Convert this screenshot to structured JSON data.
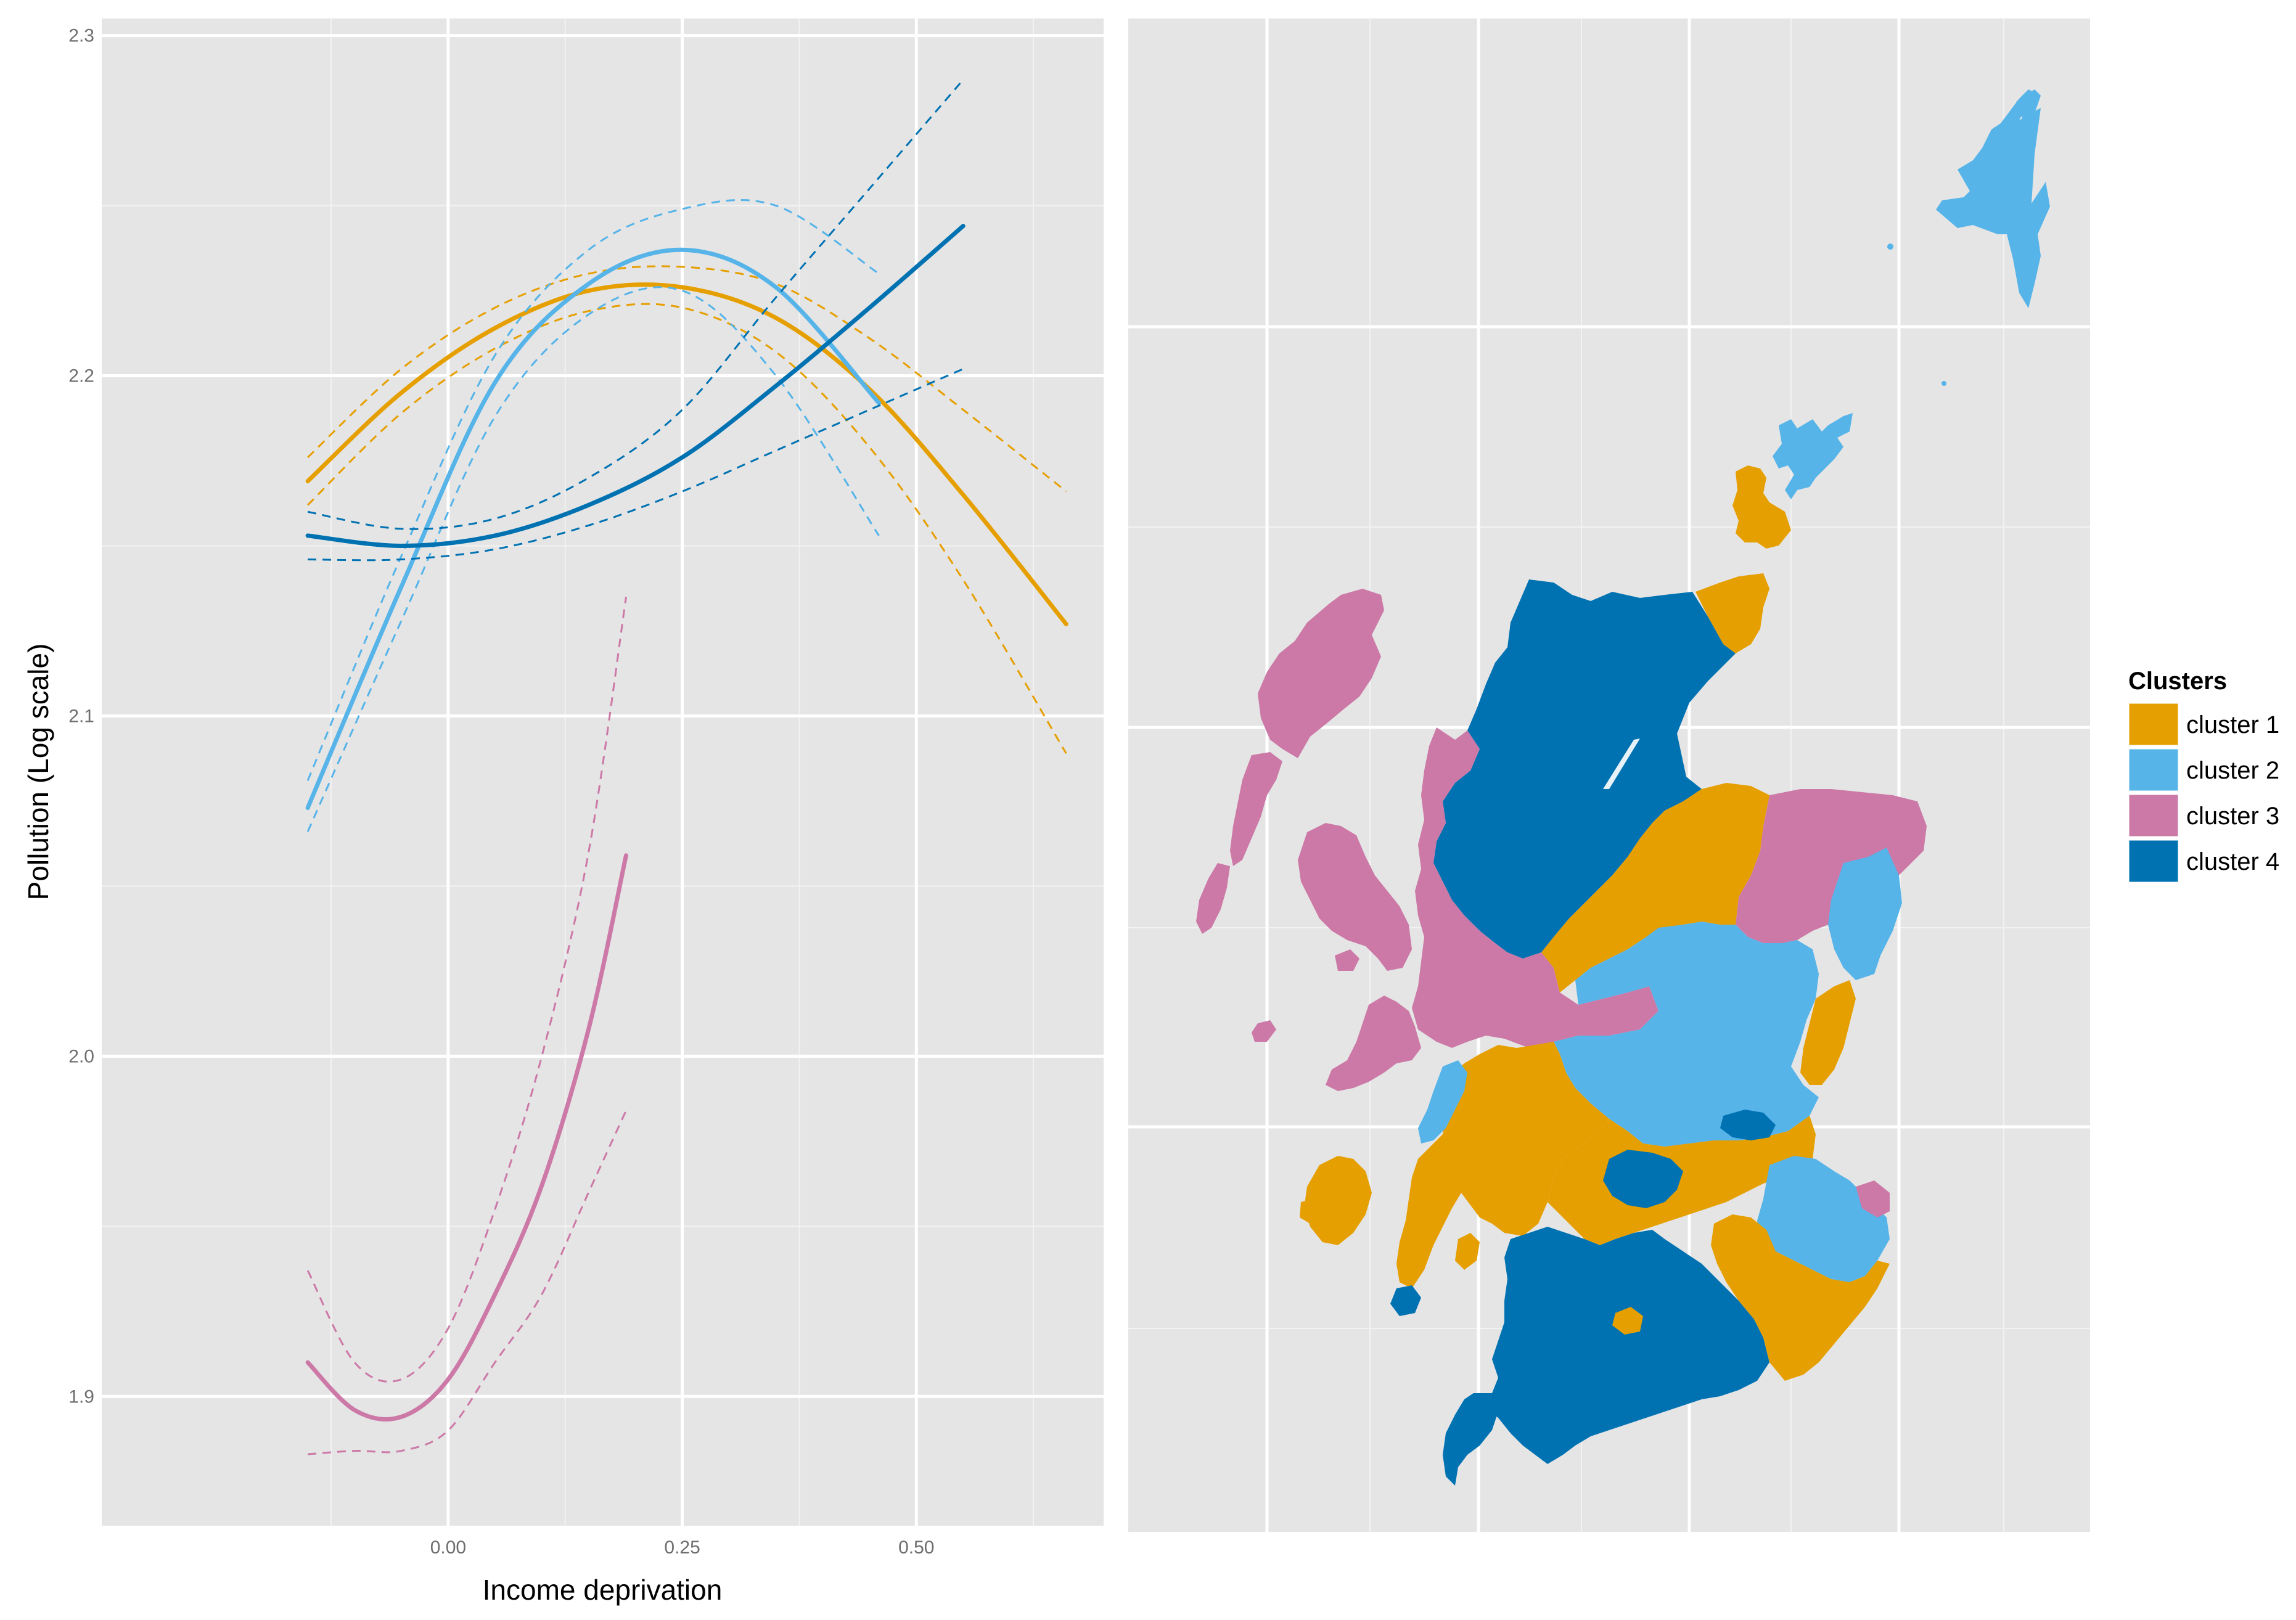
{
  "chart_data": [
    {
      "type": "line",
      "xlabel": "Income deprivation",
      "ylabel": "Pollution (Log scale)",
      "xlim": [
        -0.37,
        0.7
      ],
      "ylim": [
        1.862,
        2.305
      ],
      "x_ticks": [
        {
          "value": 0.0,
          "label": "0.00"
        },
        {
          "value": 0.25,
          "label": "0.25"
        },
        {
          "value": 0.5,
          "label": "0.50"
        }
      ],
      "y_ticks": [
        {
          "value": 1.9,
          "label": "1.9"
        },
        {
          "value": 2.0,
          "label": "2.0"
        },
        {
          "value": 2.1,
          "label": "2.1"
        },
        {
          "value": 2.2,
          "label": "2.2"
        },
        {
          "value": 2.3,
          "label": "2.3"
        }
      ],
      "grid": true,
      "series": [
        {
          "name": "cluster 1",
          "color": "#E69F00",
          "x": [
            -0.15,
            -0.05,
            0.05,
            0.15,
            0.25,
            0.35,
            0.45,
            0.55,
            0.66
          ],
          "fit": [
            2.169,
            2.195,
            2.214,
            2.225,
            2.226,
            2.217,
            2.196,
            2.165,
            2.127
          ],
          "lower": [
            2.162,
            2.189,
            2.208,
            2.219,
            2.22,
            2.207,
            2.179,
            2.14,
            2.089
          ],
          "upper": [
            2.176,
            2.202,
            2.22,
            2.23,
            2.232,
            2.227,
            2.211,
            2.19,
            2.166
          ]
        },
        {
          "name": "cluster 2",
          "color": "#56B4E9",
          "x": [
            -0.15,
            -0.05,
            0.05,
            0.15,
            0.25,
            0.35,
            0.46
          ],
          "fit": [
            2.073,
            2.138,
            2.198,
            2.227,
            2.237,
            2.226,
            2.192
          ],
          "lower": [
            2.066,
            2.128,
            2.188,
            2.218,
            2.225,
            2.2,
            2.153
          ],
          "upper": [
            2.081,
            2.147,
            2.206,
            2.237,
            2.249,
            2.25,
            2.23
          ]
        },
        {
          "name": "cluster 3",
          "color": "#CC79A7",
          "x": [
            -0.15,
            -0.1,
            -0.05,
            0.0,
            0.05,
            0.1,
            0.15,
            0.19
          ],
          "fit": [
            1.91,
            1.896,
            1.894,
            1.905,
            1.93,
            1.962,
            2.008,
            2.059
          ],
          "lower": [
            1.883,
            1.884,
            1.884,
            1.89,
            1.91,
            1.93,
            1.96,
            1.984
          ],
          "upper": [
            1.937,
            1.91,
            1.905,
            1.92,
            1.955,
            2.0,
            2.06,
            2.135
          ]
        },
        {
          "name": "cluster 4",
          "color": "#0072B2",
          "x": [
            -0.15,
            -0.05,
            0.05,
            0.15,
            0.25,
            0.35,
            0.45,
            0.55
          ],
          "fit": [
            2.153,
            2.15,
            2.153,
            2.162,
            2.176,
            2.197,
            2.22,
            2.244
          ],
          "lower": [
            2.146,
            2.146,
            2.149,
            2.156,
            2.166,
            2.178,
            2.19,
            2.202
          ],
          "upper": [
            2.16,
            2.155,
            2.158,
            2.17,
            2.19,
            2.223,
            2.255,
            2.287
          ]
        }
      ]
    },
    {
      "type": "map",
      "region": "Scotland",
      "grid": true,
      "legend_position": "right",
      "legend": {
        "title": "Clusters",
        "items": [
          {
            "label": "cluster 1",
            "color": "#E69F00"
          },
          {
            "label": "cluster 2",
            "color": "#56B4E9"
          },
          {
            "label": "cluster 3",
            "color": "#CC79A7"
          },
          {
            "label": "cluster 4",
            "color": "#0072B2"
          }
        ]
      }
    }
  ]
}
